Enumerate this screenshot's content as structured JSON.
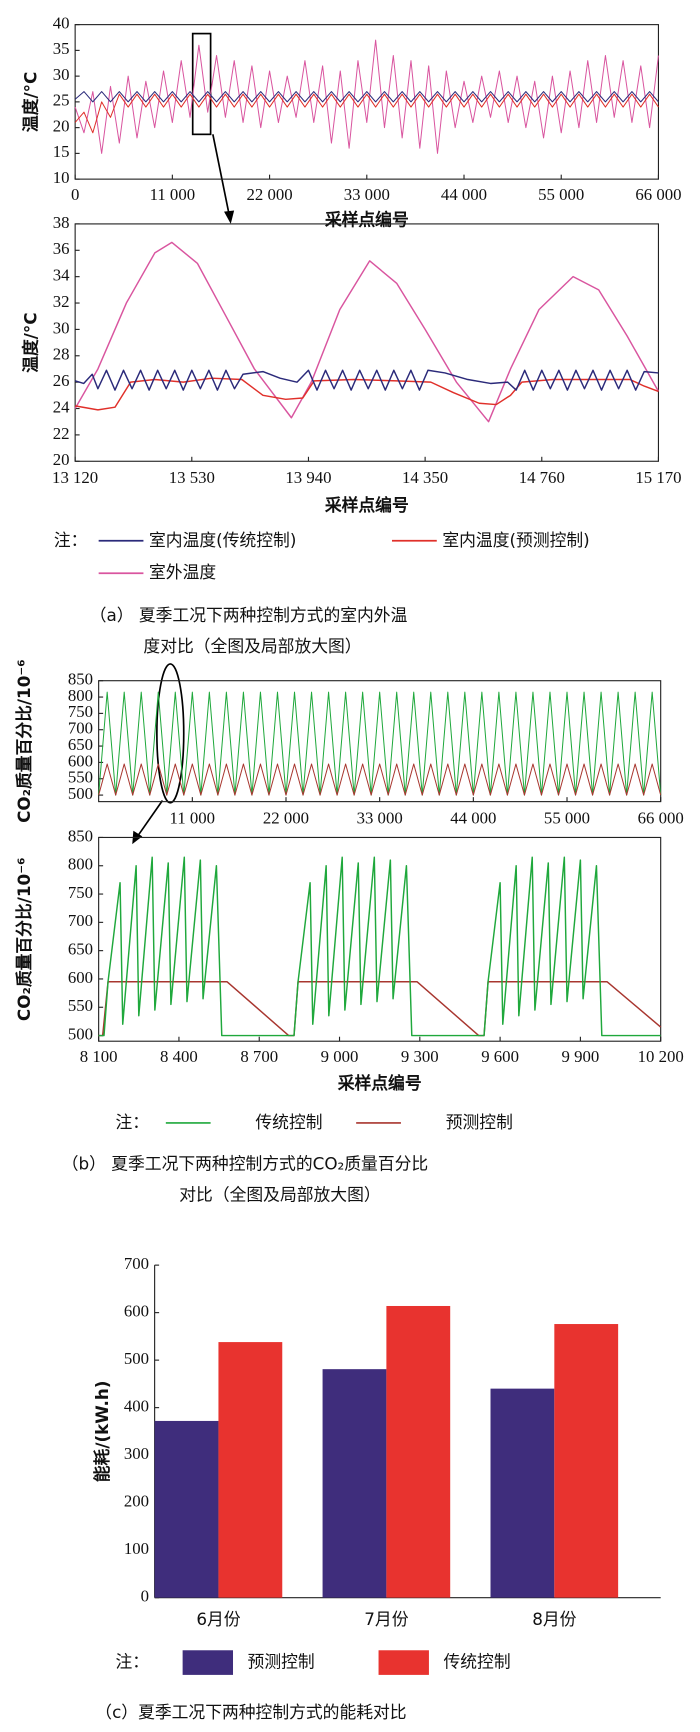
{
  "chart_data": [
    {
      "type": "line",
      "xlim": [
        0,
        66000
      ],
      "ylim": [
        10,
        40
      ],
      "xticks": [
        0,
        {
          "value": 11000,
          "label": "11 000"
        },
        {
          "value": 22000,
          "label": "22 000"
        },
        {
          "value": 33000,
          "label": "33 000"
        },
        {
          "value": 44000,
          "label": "44 000"
        },
        {
          "value": 55000,
          "label": "55 000"
        },
        {
          "value": 66000,
          "label": "66 000"
        }
      ],
      "yticks": [
        10,
        15,
        20,
        25,
        30,
        35,
        40
      ],
      "xlabel": "采样点编号",
      "ylabel": "温度/°C",
      "x": [
        0,
        1000,
        2000,
        3000,
        4000,
        5000,
        6000,
        7000,
        8000,
        9000,
        10000,
        11000,
        12000,
        13000,
        14000,
        15000,
        16000,
        17000,
        18000,
        19000,
        20000,
        21000,
        22000,
        23000,
        24000,
        25000,
        26000,
        27000,
        28000,
        29000,
        30000,
        31000,
        32000,
        33000,
        34000,
        35000,
        36000,
        37000,
        38000,
        39000,
        40000,
        41000,
        42000,
        43000,
        44000,
        45000,
        46000,
        47000,
        48000,
        49000,
        50000,
        51000,
        52000,
        53000,
        54000,
        55000,
        56000,
        57000,
        58000,
        59000,
        60000,
        61000,
        62000,
        63000,
        64000,
        65000,
        66000
      ],
      "series": [
        {
          "color": "#2b2a7a",
          "values": [
            25.5,
            27,
            25,
            27,
            25,
            27,
            25,
            27,
            25,
            27,
            25,
            27,
            25,
            27,
            25,
            27,
            25,
            27,
            25,
            27,
            25,
            27,
            25,
            27,
            25,
            27,
            25,
            27,
            25,
            27,
            25,
            27,
            25,
            27,
            25,
            27,
            25,
            27,
            25,
            27,
            25,
            27,
            25,
            27,
            25,
            27,
            25,
            27,
            25,
            27,
            25,
            27,
            25,
            27,
            25,
            27,
            25,
            27,
            25,
            27,
            25,
            27,
            25,
            27,
            25,
            27,
            25
          ]
        },
        {
          "color": "#e0302a",
          "values": [
            21,
            23,
            19,
            25,
            22,
            26.5,
            24,
            26.5,
            24,
            26.5,
            24,
            26.5,
            24,
            26.5,
            24,
            26.5,
            24,
            26.5,
            24,
            26.5,
            24,
            26.5,
            24,
            26.5,
            24,
            26.5,
            24,
            26.5,
            24,
            26.5,
            24,
            26.5,
            24,
            26.5,
            24,
            26.5,
            24,
            26.5,
            24,
            26.5,
            24,
            26.5,
            24,
            26.5,
            24,
            26.5,
            24,
            26.5,
            24,
            26.5,
            24,
            26.5,
            24,
            26.5,
            24,
            26.5,
            24,
            26.5,
            24,
            26.5,
            24,
            26.5,
            24,
            26.5,
            24,
            26.5,
            24
          ]
        },
        {
          "color": "#d9559f",
          "values": [
            24,
            19,
            27,
            15,
            28,
            17,
            30,
            18,
            29,
            20,
            31,
            21,
            33,
            22,
            36,
            23,
            34,
            22,
            33,
            21,
            32,
            20,
            31,
            21,
            30,
            22,
            33,
            21,
            32,
            17,
            31,
            16,
            33,
            21,
            37,
            20,
            34,
            18,
            33,
            16,
            32,
            15,
            31,
            20,
            29,
            21,
            30,
            22,
            31,
            21,
            30,
            20,
            29,
            18,
            30,
            19,
            31,
            20,
            33,
            21,
            34,
            22,
            33,
            21,
            32,
            20,
            34
          ]
        }
      ]
    },
    {
      "type": "line",
      "xlim": [
        13120,
        15170
      ],
      "ylim": [
        20,
        38
      ],
      "xticks": [
        {
          "value": 13120,
          "label": "13 120"
        },
        {
          "value": 13530,
          "label": "13 530"
        },
        {
          "value": 13940,
          "label": "13 940"
        },
        {
          "value": 14350,
          "label": "14 350"
        },
        {
          "value": 14760,
          "label": "14 760"
        },
        {
          "value": 15170,
          "label": "15 170"
        }
      ],
      "yticks": [
        20,
        22,
        24,
        26,
        28,
        30,
        32,
        34,
        36,
        38
      ],
      "xlabel": "采样点编号",
      "ylabel": "温度/°C",
      "legend_title": "注：",
      "caption": [
        "（a） 夏季工况下两种控制方式的室内外温",
        "度对比（全图及局部放大图）"
      ],
      "series": [
        {
          "name": "室内温度(传统控制)",
          "color": "#2b2a7a",
          "x": [
            13120,
            13150,
            13180,
            13200,
            13230,
            13260,
            13290,
            13320,
            13350,
            13380,
            13410,
            13440,
            13470,
            13500,
            13530,
            13560,
            13590,
            13620,
            13650,
            13680,
            13710,
            13780,
            13840,
            13900,
            13940,
            13970,
            14000,
            14030,
            14060,
            14090,
            14120,
            14150,
            14180,
            14210,
            14240,
            14270,
            14300,
            14330,
            14360,
            14420,
            14500,
            14580,
            14640,
            14670,
            14700,
            14730,
            14760,
            14790,
            14820,
            14850,
            14880,
            14910,
            14940,
            14970,
            15000,
            15030,
            15060,
            15090,
            15120,
            15170
          ],
          "values": [
            26.1,
            25.9,
            26.6,
            25.5,
            26.9,
            25.4,
            26.9,
            25.5,
            26.9,
            25.4,
            26.9,
            25.5,
            26.9,
            25.4,
            26.9,
            25.5,
            26.9,
            25.4,
            26.9,
            25.5,
            26.6,
            26.8,
            26.3,
            26.0,
            26.9,
            25.4,
            26.9,
            25.5,
            26.9,
            25.4,
            26.9,
            25.5,
            26.9,
            25.4,
            26.9,
            25.5,
            26.9,
            25.4,
            26.9,
            26.7,
            26.2,
            25.9,
            26.0,
            25.4,
            26.9,
            25.4,
            26.9,
            25.5,
            26.9,
            25.4,
            26.9,
            25.5,
            26.9,
            25.4,
            26.9,
            25.5,
            26.9,
            25.4,
            26.8,
            26.7
          ]
        },
        {
          "name": "室内温度(预测控制)",
          "color": "#e0302a",
          "x": [
            13120,
            13200,
            13260,
            13315,
            13400,
            13500,
            13600,
            13706,
            13780,
            13860,
            13920,
            13960,
            14100,
            14250,
            14370,
            14450,
            14540,
            14600,
            14650,
            14690,
            14800,
            14950,
            15070,
            15120,
            15170
          ],
          "values": [
            24.2,
            23.9,
            24.1,
            26,
            26.2,
            26,
            26.3,
            26.2,
            25,
            24.7,
            24.8,
            26.1,
            26.2,
            26.1,
            26,
            25.2,
            24.4,
            24.3,
            25,
            26,
            26.2,
            26.2,
            26.2,
            25.7,
            25.3
          ]
        },
        {
          "name": "室外温度",
          "color": "#d9559f",
          "x": [
            13120,
            13200,
            13300,
            13400,
            13460,
            13550,
            13650,
            13750,
            13880,
            13950,
            14050,
            14155,
            14250,
            14350,
            14460,
            14573,
            14650,
            14750,
            14870,
            14960,
            15060,
            15170
          ],
          "values": [
            24,
            27,
            32,
            35.8,
            36.6,
            35,
            31,
            27,
            23.3,
            26,
            31.5,
            35.2,
            33.5,
            30,
            26,
            23,
            27,
            31.5,
            34,
            33,
            29.5,
            25.3
          ]
        }
      ]
    },
    {
      "type": "line",
      "xlim": [
        0,
        66000
      ],
      "ylim": [
        480,
        850
      ],
      "xticks": [
        {
          "value": 11000,
          "label": "11 000"
        },
        {
          "value": 22000,
          "label": "22 000"
        },
        {
          "value": 33000,
          "label": "33 000"
        },
        {
          "value": 44000,
          "label": "44 000"
        },
        {
          "value": 55000,
          "label": "55 000"
        },
        {
          "value": 66000,
          "label": "66 000"
        }
      ],
      "yticks": [
        500,
        550,
        600,
        650,
        700,
        750,
        800,
        850
      ],
      "ylabel": "CO₂质量百分比/10⁻⁶",
      "x": [
        0,
        1000,
        2000,
        3000,
        4000,
        5000,
        6000,
        7000,
        8000,
        9000,
        10000,
        11000,
        12000,
        13000,
        14000,
        15000,
        16000,
        17000,
        18000,
        19000,
        20000,
        21000,
        22000,
        23000,
        24000,
        25000,
        26000,
        27000,
        28000,
        29000,
        30000,
        31000,
        32000,
        33000,
        34000,
        35000,
        36000,
        37000,
        38000,
        39000,
        40000,
        41000,
        42000,
        43000,
        44000,
        45000,
        46000,
        47000,
        48000,
        49000,
        50000,
        51000,
        52000,
        53000,
        54000,
        55000,
        56000,
        57000,
        58000,
        59000,
        60000,
        61000,
        62000,
        63000,
        64000,
        65000,
        66000
      ],
      "series": [
        {
          "color": "#1fa83c",
          "values": [
            500,
            815,
            500,
            815,
            500,
            815,
            500,
            815,
            500,
            815,
            500,
            815,
            500,
            815,
            500,
            815,
            500,
            815,
            500,
            815,
            500,
            815,
            500,
            815,
            500,
            815,
            500,
            815,
            500,
            815,
            500,
            815,
            500,
            815,
            500,
            815,
            500,
            815,
            500,
            815,
            500,
            815,
            500,
            815,
            500,
            815,
            500,
            815,
            500,
            815,
            500,
            815,
            500,
            815,
            500,
            815,
            500,
            815,
            500,
            815,
            500,
            815,
            500,
            815,
            500,
            815,
            500
          ]
        },
        {
          "color": "#a8362f",
          "values": [
            500,
            595,
            500,
            595,
            500,
            595,
            500,
            595,
            500,
            595,
            500,
            595,
            500,
            595,
            500,
            595,
            500,
            595,
            500,
            595,
            500,
            595,
            500,
            595,
            500,
            595,
            500,
            595,
            500,
            595,
            500,
            595,
            500,
            595,
            500,
            595,
            500,
            595,
            500,
            595,
            500,
            595,
            500,
            595,
            500,
            595,
            500,
            595,
            500,
            595,
            500,
            595,
            500,
            595,
            500,
            595,
            500,
            595,
            500,
            595,
            500,
            595,
            500,
            595,
            500,
            595,
            500
          ]
        }
      ]
    },
    {
      "type": "line",
      "xlim": [
        8100,
        10200
      ],
      "ylim": [
        490,
        850
      ],
      "xticks": [
        {
          "value": 8100,
          "label": "8 100"
        },
        {
          "value": 8400,
          "label": "8 400"
        },
        {
          "value": 8700,
          "label": "8 700"
        },
        {
          "value": 9000,
          "label": "9 000"
        },
        {
          "value": 9300,
          "label": "9 300"
        },
        {
          "value": 9600,
          "label": "9 600"
        },
        {
          "value": 9900,
          "label": "9 900"
        },
        {
          "value": 10200,
          "label": "10 200"
        }
      ],
      "yticks": [
        500,
        550,
        600,
        650,
        700,
        750,
        800,
        850
      ],
      "xlabel": "采样点编号",
      "ylabel": "CO₂质量百分比/10⁻⁶",
      "legend_title": "注：",
      "caption": [
        "（b） 夏季工况下两种控制方式的CO₂质量百分比",
        "对比（全图及局部放大图）"
      ],
      "series": [
        {
          "name": "传统控制",
          "color": "#1fa83c",
          "x": [
            8100,
            8120,
            8135,
            8180,
            8190,
            8240,
            8250,
            8300,
            8310,
            8360,
            8370,
            8420,
            8430,
            8480,
            8490,
            8540,
            8560,
            8830,
            8845,
            8890,
            8900,
            8950,
            8960,
            9010,
            9020,
            9070,
            9080,
            9130,
            9140,
            9190,
            9200,
            9250,
            9270,
            9540,
            9555,
            9600,
            9610,
            9660,
            9670,
            9720,
            9730,
            9780,
            9790,
            9840,
            9850,
            9900,
            9910,
            9960,
            9980,
            10200
          ],
          "values": [
            500,
            500,
            595,
            770,
            520,
            800,
            535,
            815,
            545,
            805,
            555,
            815,
            560,
            810,
            565,
            800,
            500,
            500,
            595,
            770,
            520,
            800,
            535,
            815,
            545,
            805,
            555,
            815,
            560,
            810,
            565,
            800,
            500,
            500,
            595,
            770,
            520,
            800,
            535,
            815,
            545,
            805,
            555,
            815,
            560,
            810,
            565,
            800,
            500,
            500
          ]
        },
        {
          "name": "预测控制",
          "color": "#a8362f",
          "x": [
            8100,
            8115,
            8135,
            8580,
            8810,
            8830,
            8845,
            9290,
            9520,
            9540,
            9555,
            10000,
            10200
          ],
          "values": [
            500,
            500,
            595,
            595,
            500,
            500,
            595,
            595,
            500,
            500,
            595,
            595,
            515
          ]
        }
      ]
    },
    {
      "type": "bar",
      "categories": [
        "6月份",
        "7月份",
        "8月份"
      ],
      "ylim": [
        0,
        700
      ],
      "yticks": [
        0,
        100,
        200,
        300,
        400,
        500,
        600,
        700
      ],
      "ylabel": "能耗/(kW.h)",
      "legend_title": "注：",
      "caption": [
        "（c）夏季工况下两种控制方式的能耗对比"
      ],
      "series": [
        {
          "name": "预测控制",
          "color": "#3f2d7c",
          "values": [
            372,
            481,
            440
          ]
        },
        {
          "name": "传统控制",
          "color": "#e8332f",
          "values": [
            538,
            614,
            576
          ]
        }
      ]
    }
  ]
}
